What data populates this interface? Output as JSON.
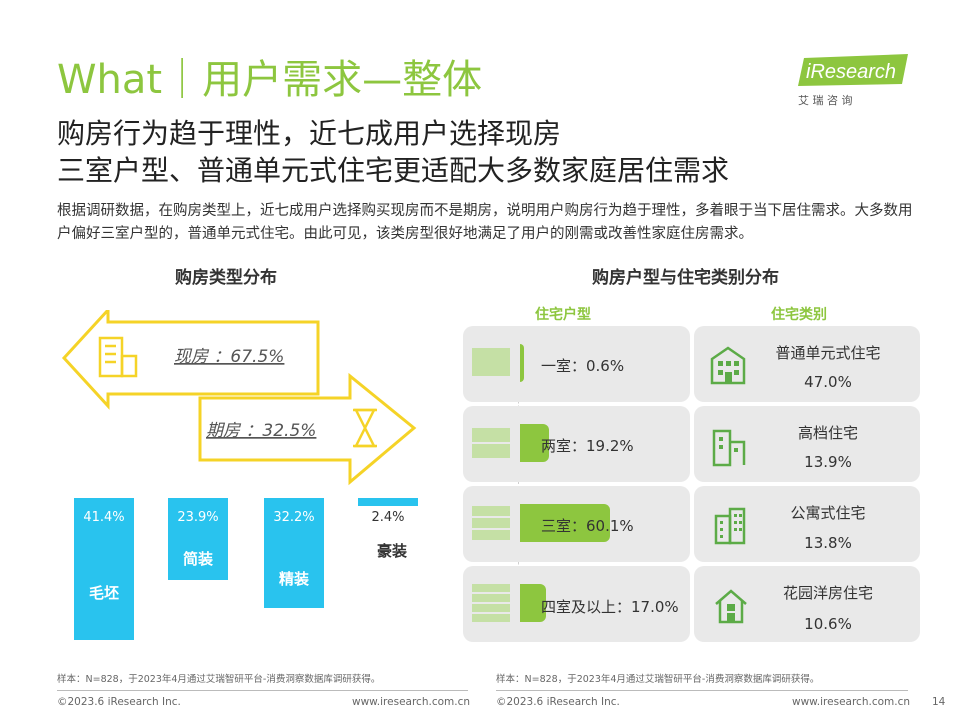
{
  "header": {
    "title": "What｜用户需求—整体",
    "logo_en": "iResearch",
    "logo_cn": "艾  瑞  咨  询"
  },
  "headline": {
    "line1": "购房行为趋于理性，近七成用户选择现房",
    "line2": "三室户型、普通单元式住宅更适配大多数家庭居住需求"
  },
  "summary": "根据调研数据，在购房类型上，近七成用户选择购买现房而不是期房，说明用户购房行为趋于理性，多着眼于当下居住需求。大多数用户偏好三室户型的，普通单元式住宅。由此可见，该类房型很好地满足了用户的刚需或改善性家庭住房需求。",
  "left_chart": {
    "title": "购房类型分布",
    "arrow_existing": "现房 ：67.5%",
    "arrow_presale": "期房 ：32.5%",
    "existing_pct": 67.5,
    "presale_pct": 32.5,
    "bars": [
      {
        "label": "毛坯",
        "value_text": "41.4%",
        "value": 41.4
      },
      {
        "label": "简装",
        "value_text": "23.9%",
        "value": 23.9
      },
      {
        "label": "精装",
        "value_text": "32.2%",
        "value": 32.2
      },
      {
        "label": "豪装",
        "value_text": "2.4%",
        "value": 2.4
      }
    ]
  },
  "right_chart": {
    "title": "购房户型与住宅类别分布",
    "col_room": "住宅户型",
    "col_type": "住宅类别",
    "rooms": [
      {
        "label": "一室：0.6%",
        "value": 0.6
      },
      {
        "label": "两室：19.2%",
        "value": 19.2
      },
      {
        "label": "三室：60.1%",
        "value": 60.1
      },
      {
        "label": "四室及以上：17.0%",
        "value": 17.0
      }
    ],
    "types": [
      {
        "name": "普通单元式住宅",
        "value_text": "47.0%",
        "icon": "apartment-building-icon"
      },
      {
        "name": "高档住宅",
        "value_text": "13.9%",
        "icon": "high-rise-icon"
      },
      {
        "name": "公寓式住宅",
        "value_text": "13.8%",
        "icon": "office-block-icon"
      },
      {
        "name": "花园洋房住宅",
        "value_text": "10.6%",
        "icon": "house-icon"
      }
    ]
  },
  "notes": {
    "left": "样本：N=828，于2023年4月通过艾瑞智研平台-消费洞察数据库调研获得。",
    "right": "样本：N=828，于2023年4月通过艾瑞智研平台-消费洞察数据库调研获得。"
  },
  "footer": {
    "copyright_left": "©2023.6 iResearch Inc.",
    "url_left": "www.iresearch.com.cn",
    "copyright_right": "©2023.6 iResearch Inc.",
    "url_right": "www.iresearch.com.cn",
    "page_number": "14"
  },
  "colors": {
    "accent_green": "#8dc63f",
    "bar_blue": "#29c3ee",
    "arrow_yellow": "#f5d327",
    "panel_grey": "#e9e9e9"
  }
}
